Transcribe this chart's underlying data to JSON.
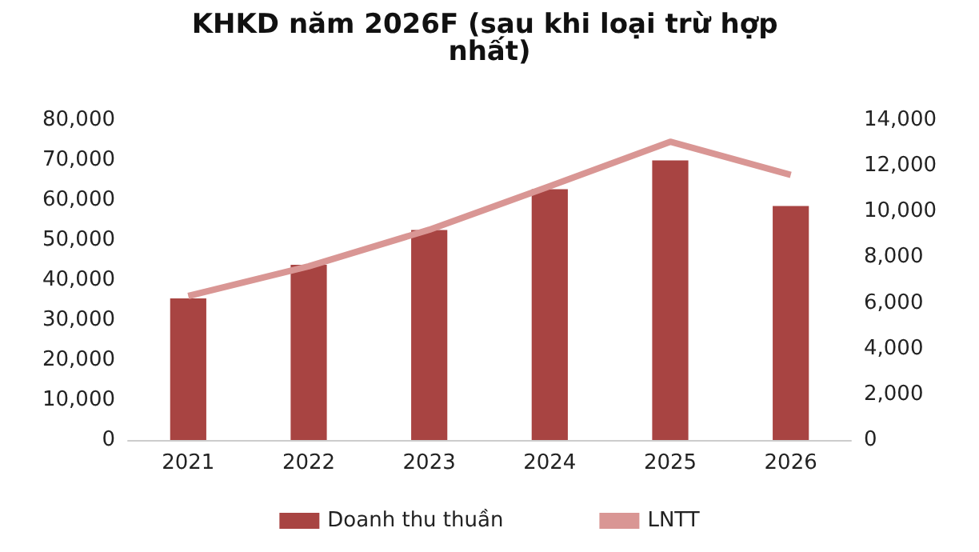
{
  "chart_data": {
    "type": "bar",
    "title": "KHKD năm 2026F (sau khi loại trừ hợp nhất)",
    "categories": [
      "2021",
      "2022",
      "2023",
      "2024",
      "2025",
      "2026"
    ],
    "series": [
      {
        "name": "Doanh thu thuần",
        "color": "#a84442",
        "values": [
          35400,
          43800,
          52500,
          62700,
          69900,
          58500
        ]
      },
      {
        "name": "LNTT",
        "type": "line",
        "axis": "y2",
        "color": "#d99694",
        "values": [
          6300,
          7600,
          9200,
          11100,
          13050,
          11600
        ]
      }
    ],
    "ylim": [
      0,
      80000
    ],
    "yticks": [
      0,
      {
        "value": 10000,
        "label": "10,000"
      },
      {
        "value": 20000,
        "label": "20,000"
      },
      {
        "value": 30000,
        "label": "30,000"
      },
      {
        "value": 40000,
        "label": "40,000"
      },
      {
        "value": 50000,
        "label": "50,000"
      },
      {
        "value": 60000,
        "label": "60,000"
      },
      {
        "value": 70000,
        "label": "70,000"
      },
      {
        "value": 80000,
        "label": "80,000"
      }
    ],
    "y2lim": [
      0,
      14000
    ],
    "y2ticks": [
      0,
      {
        "value": 2000,
        "label": "2,000"
      },
      {
        "value": 4000,
        "label": "4,000"
      },
      {
        "value": 6000,
        "label": "6,000"
      },
      {
        "value": 8000,
        "label": "8,000"
      },
      {
        "value": 10000,
        "label": "10,000"
      },
      {
        "value": 12000,
        "label": "12,000"
      },
      {
        "value": 14000,
        "label": "14,000"
      }
    ],
    "grid": false,
    "legend": "bottom",
    "marker": "none"
  }
}
